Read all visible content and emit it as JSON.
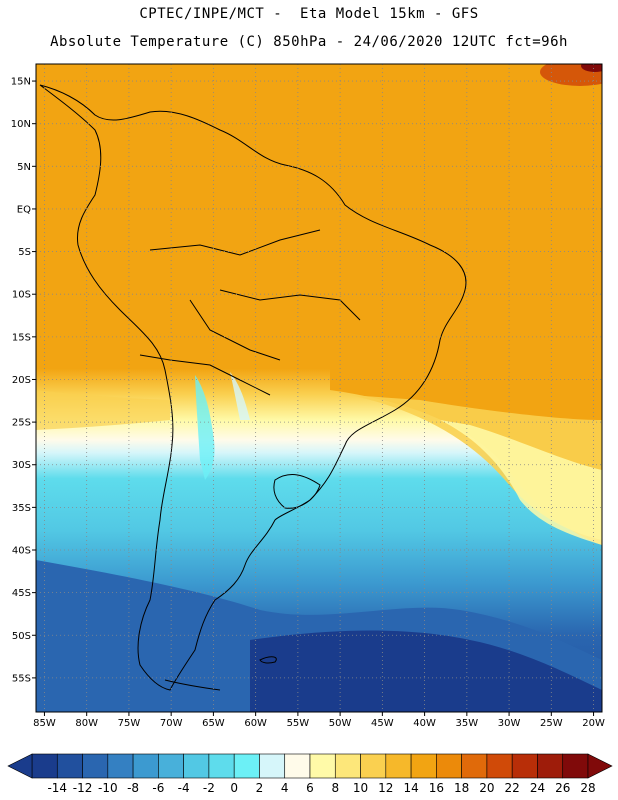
{
  "header": {
    "line1": "CPTEC/INPE/MCT -  Eta Model 15km - GFS",
    "line2": "Absolute Temperature (C) 850hPa - 24/06/2020 12UTC fct=96h"
  },
  "map": {
    "lat_labels": [
      "15N",
      "10N",
      "5N",
      "EQ",
      "5S",
      "10S",
      "15S",
      "20S",
      "25S",
      "30S",
      "35S",
      "40S",
      "45S",
      "50S",
      "55S"
    ],
    "lon_labels": [
      "85W",
      "80W",
      "75W",
      "70W",
      "65W",
      "60W",
      "55W",
      "50W",
      "45W",
      "40W",
      "35W",
      "30W",
      "25W",
      "20W"
    ],
    "lon_range": [
      -86,
      -19
    ],
    "lat_range": [
      -59,
      17
    ]
  },
  "colorbar": {
    "labels": [
      "-14",
      "-12",
      "-10",
      "-8",
      "-6",
      "-4",
      "-2",
      "0",
      "2",
      "4",
      "6",
      "8",
      "10",
      "12",
      "14",
      "16",
      "18",
      "20",
      "22",
      "24",
      "26",
      "28"
    ],
    "colors": [
      "#1a3c8c",
      "#21509e",
      "#2a66b0",
      "#3480c2",
      "#3c9ad0",
      "#48b0da",
      "#52c8e4",
      "#5edcec",
      "#6cf0f6",
      "#d6f6fa",
      "#fffbea",
      "#fffaa8",
      "#fde77a",
      "#fad050",
      "#f6b82a",
      "#f2a412",
      "#ec8a0a",
      "#e06a0a",
      "#d04a08",
      "#b82e08",
      "#9e1c0a",
      "#800a0a"
    ]
  }
}
